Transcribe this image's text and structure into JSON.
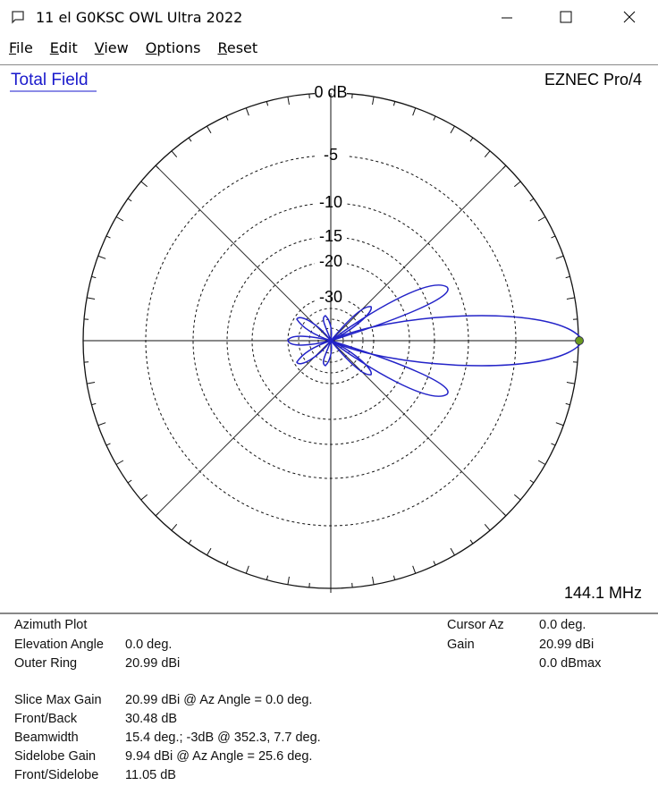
{
  "window": {
    "title": "11 el G0KSC OWL Ultra 2022",
    "menu": [
      "File",
      "Edit",
      "View",
      "Options",
      "Reset"
    ]
  },
  "plot": {
    "field": "Total Field",
    "program": "EZNEC Pro/4",
    "frequency": "144.1 MHz",
    "rings": [
      "0 dB",
      "-5",
      "-10",
      "-15",
      "-20",
      "-30"
    ]
  },
  "info": {
    "header": [
      {
        "label": "Azimuth Plot"
      },
      {
        "label": "Elevation Angle",
        "value": "0.0 deg."
      },
      {
        "label": "Outer Ring",
        "value": "20.99 dBi"
      }
    ],
    "cursor": [
      {
        "label": "Cursor Az",
        "value": "0.0 deg."
      },
      {
        "label": "Gain",
        "value": "20.99 dBi"
      },
      {
        "value": "0.0 dBmax"
      }
    ],
    "summary": [
      {
        "label": "Slice Max Gain",
        "value": "20.99 dBi @ Az Angle = 0.0 deg."
      },
      {
        "label": "Front/Back",
        "value": "30.48 dB"
      },
      {
        "label": "Beamwidth",
        "value": "15.4 deg.; -3dB @ 352.3, 7.7 deg."
      },
      {
        "label": "Sidelobe Gain",
        "value": "9.94 dBi @ Az Angle = 25.6 deg."
      },
      {
        "label": "Front/Sidelobe",
        "value": "11.05 dB"
      }
    ]
  }
}
